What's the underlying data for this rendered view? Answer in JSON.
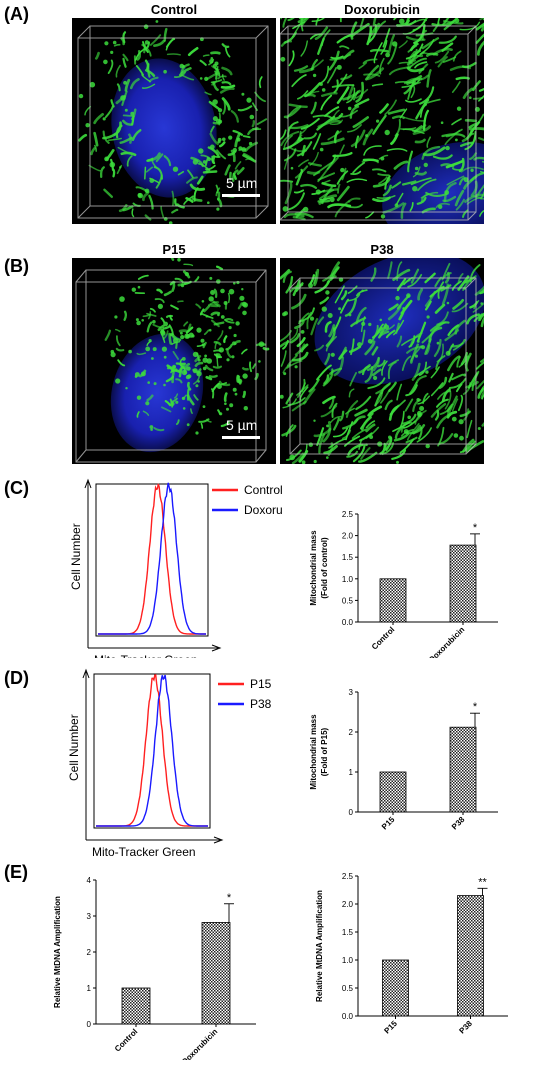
{
  "panels": {
    "A": {
      "label": "(A)",
      "images": [
        {
          "title": "Control",
          "scale_bar": "5 µm"
        },
        {
          "title": "Doxorubicin"
        }
      ]
    },
    "B": {
      "label": "(B)",
      "images": [
        {
          "title": "P15",
          "scale_bar": "5 µm"
        },
        {
          "title": "P38"
        }
      ]
    },
    "C": {
      "label": "(C)"
    },
    "D": {
      "label": "(D)"
    },
    "E": {
      "label": "(E)"
    }
  },
  "colors": {
    "red": "#ff2020",
    "blue": "#1a1aff",
    "mito_green": "#3cdc3c",
    "nucleus_blue": "#1e2ccc"
  },
  "chart_data": [
    {
      "id": "C-flow",
      "type": "line",
      "xlabel": "Mito-Tracker Green",
      "ylabel": "Cell Number",
      "series": [
        {
          "name": "Control",
          "color": "#ff2020",
          "peak_x": 0.55
        },
        {
          "name": "Doxorubicin",
          "color": "#1a1aff",
          "peak_x": 0.65
        }
      ]
    },
    {
      "id": "C-bar",
      "type": "bar",
      "categories": [
        "Control",
        "Doxorubicin"
      ],
      "values": [
        1.0,
        1.78
      ],
      "errors": [
        0,
        0.26
      ],
      "significance": [
        "",
        "*"
      ],
      "ylabel_lines": [
        "Mitochondrial mass",
        "(Fold of control)"
      ],
      "ylim": [
        0,
        2.5
      ],
      "yticks": [
        "0.0",
        "0.5",
        "1.0",
        "1.5",
        "2.0",
        "2.5"
      ]
    },
    {
      "id": "D-flow",
      "type": "line",
      "xlabel": "Mito-Tracker Green",
      "ylabel": "Cell Number",
      "series": [
        {
          "name": "P15",
          "color": "#ff2020",
          "peak_x": 0.52
        },
        {
          "name": "P38",
          "color": "#1a1aff",
          "peak_x": 0.6
        }
      ]
    },
    {
      "id": "D-bar",
      "type": "bar",
      "categories": [
        "P15",
        "P38"
      ],
      "values": [
        1.0,
        2.12
      ],
      "errors": [
        0,
        0.35
      ],
      "significance": [
        "",
        "*"
      ],
      "ylabel_lines": [
        "Mitochondrial mass",
        "(Fold of P15)"
      ],
      "ylim": [
        0,
        3
      ],
      "yticks": [
        "0",
        "1",
        "2",
        "3"
      ]
    },
    {
      "id": "E-left",
      "type": "bar",
      "categories": [
        "Control",
        "Doxorubicin"
      ],
      "values": [
        1.0,
        2.82
      ],
      "errors": [
        0,
        0.52
      ],
      "significance": [
        "",
        "*"
      ],
      "ylabel_lines": [
        "Relative MtDNA Amplification"
      ],
      "ylim": [
        0,
        4
      ],
      "yticks": [
        "0",
        "1",
        "2",
        "3",
        "4"
      ]
    },
    {
      "id": "E-right",
      "type": "bar",
      "categories": [
        "P15",
        "P38"
      ],
      "values": [
        1.0,
        2.15
      ],
      "errors": [
        0,
        0.13
      ],
      "significance": [
        "",
        "**"
      ],
      "ylabel_lines": [
        "Relative MtDNA Amplification"
      ],
      "ylim": [
        0,
        2.5
      ],
      "yticks": [
        "0.0",
        "0.5",
        "1.0",
        "1.5",
        "2.0",
        "2.5"
      ]
    }
  ]
}
